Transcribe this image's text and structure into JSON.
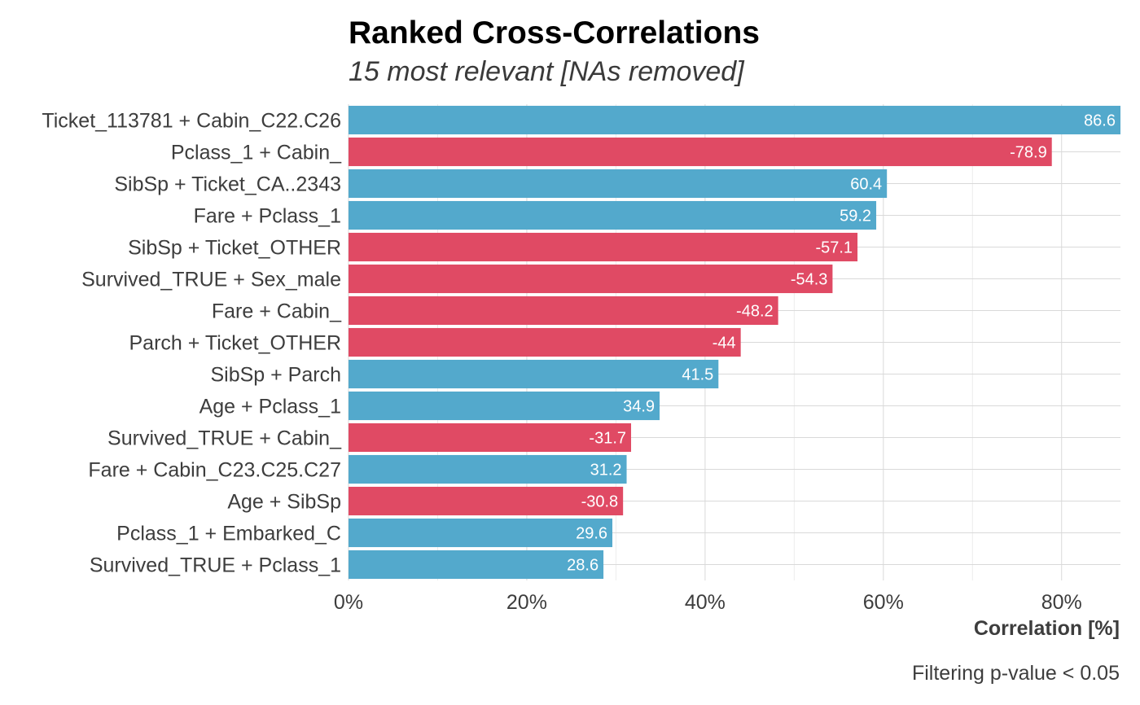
{
  "chart_data": {
    "type": "bar",
    "orientation": "horizontal",
    "title": "Ranked Cross-Correlations",
    "subtitle": "15 most relevant [NAs removed]",
    "xlabel": "Correlation [%]",
    "caption": "Filtering p-value < 0.05",
    "xlim": [
      0,
      86.6
    ],
    "xticks": [
      0,
      20,
      40,
      60,
      80
    ],
    "xtick_labels": [
      "0%",
      "20%",
      "40%",
      "60%",
      "80%"
    ],
    "grid": true,
    "colors": {
      "positive": "#53a9cc",
      "negative": "#e04a64"
    },
    "categories": [
      "Ticket_113781 + Cabin_C22.C26",
      "Pclass_1 + Cabin_",
      "SibSp + Ticket_CA..2343",
      "Fare + Pclass_1",
      "SibSp + Ticket_OTHER",
      "Survived_TRUE + Sex_male",
      "Fare + Cabin_",
      "Parch + Ticket_OTHER",
      "SibSp + Parch",
      "Age + Pclass_1",
      "Survived_TRUE + Cabin_",
      "Fare + Cabin_C23.C25.C27",
      "Age + SibSp",
      "Pclass_1 + Embarked_C",
      "Survived_TRUE + Pclass_1"
    ],
    "values": [
      86.6,
      -78.9,
      60.4,
      59.2,
      -57.1,
      -54.3,
      -48.2,
      -44,
      41.5,
      34.9,
      -31.7,
      31.2,
      -30.8,
      29.6,
      28.6
    ],
    "value_labels": [
      "86.6",
      "-78.9",
      "60.4",
      "59.2",
      "-57.1",
      "-54.3",
      "-48.2",
      "-44",
      "41.5",
      "34.9",
      "-31.7",
      "31.2",
      "-30.8",
      "29.6",
      "28.6"
    ]
  }
}
